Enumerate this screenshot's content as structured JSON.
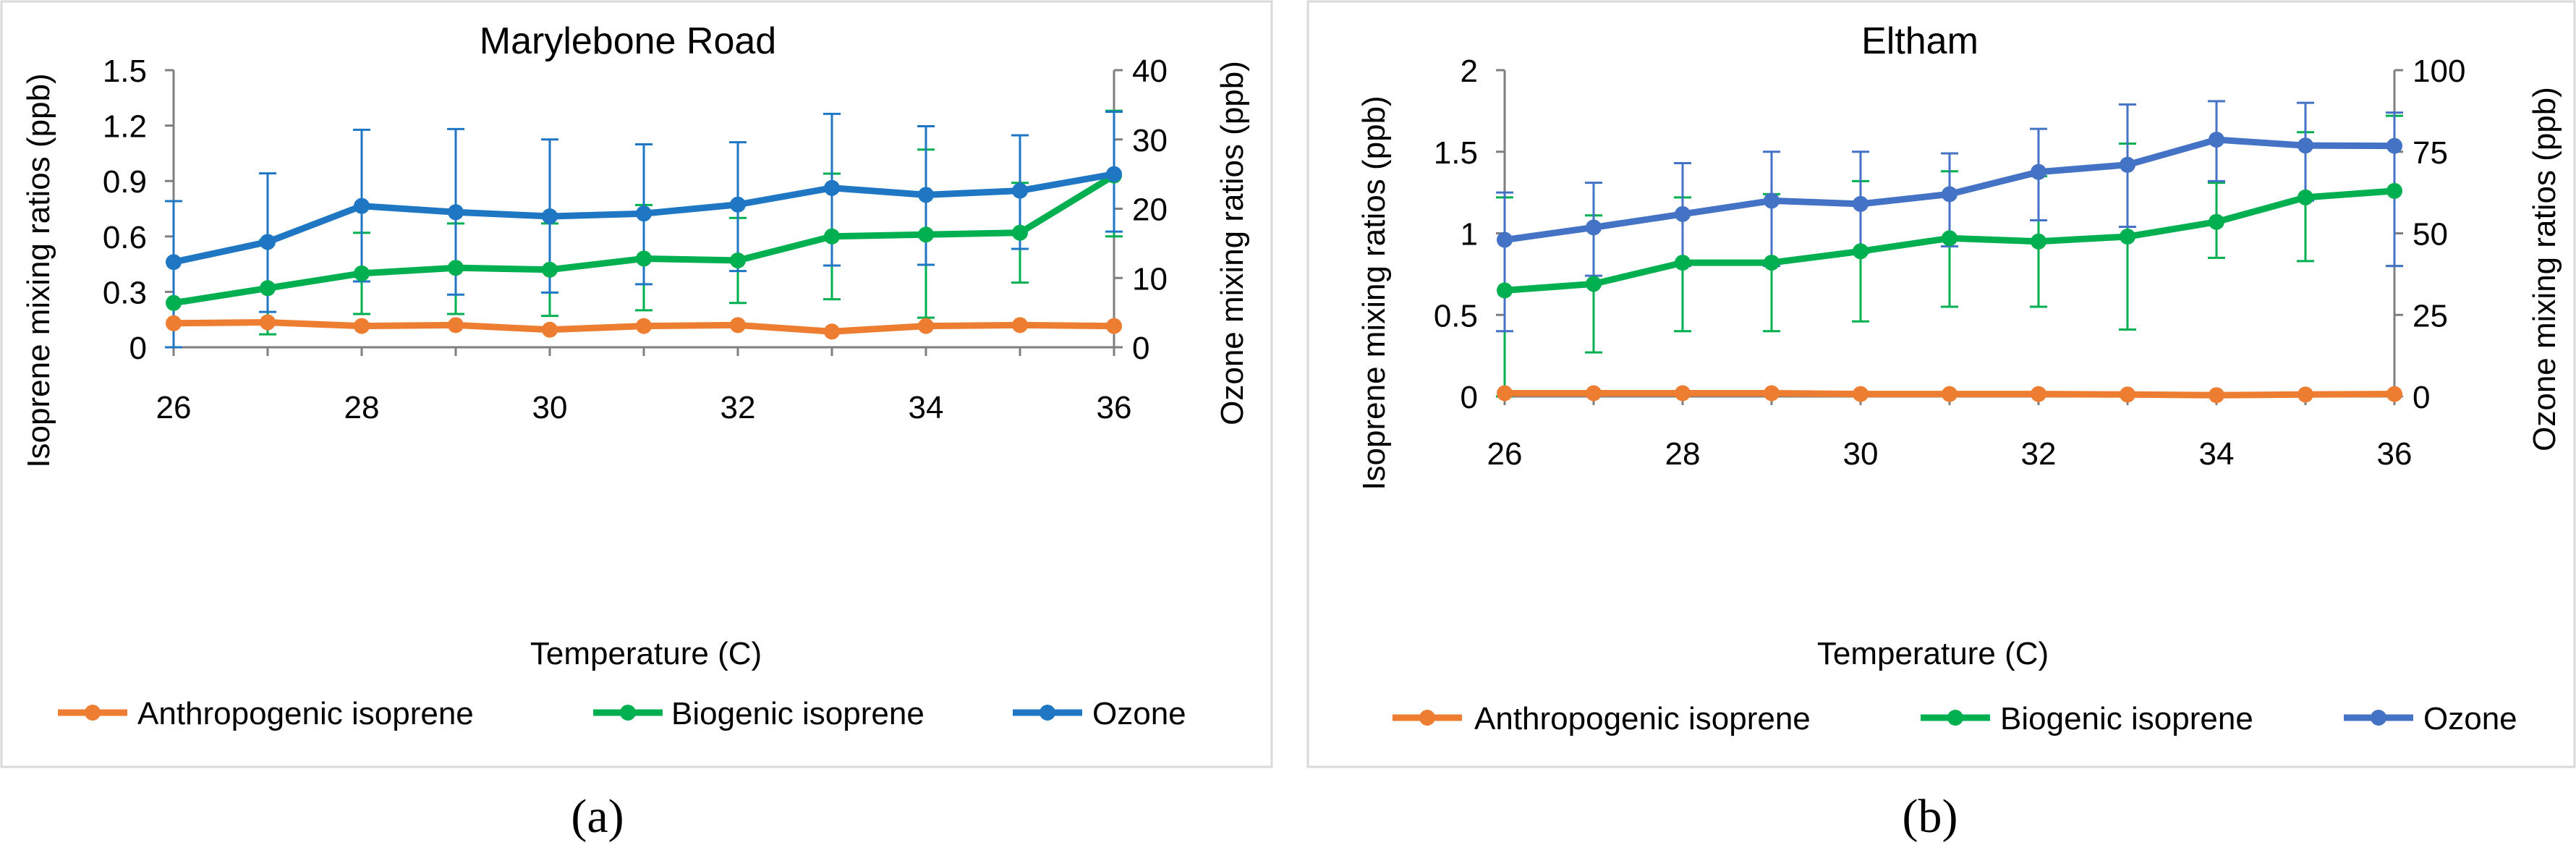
{
  "chart_data": [
    {
      "type": "line",
      "panel": "(a)",
      "title": "Marylebone  Road",
      "xlabel": "Temperature (C)",
      "ylabel": "Isoprene mixing ratios (ppb)",
      "y2label": "Ozone mixing ratios (ppb)",
      "x": [
        26,
        27,
        28,
        29,
        30,
        31,
        32,
        33,
        34,
        35,
        36
      ],
      "xlim": [
        26,
        36
      ],
      "xticks": [
        "26",
        "28",
        "30",
        "32",
        "34",
        "36"
      ],
      "ylim": [
        0,
        1.5
      ],
      "yticks": [
        "0",
        "0.3",
        "0.6",
        "0.9",
        "1.2",
        "1.5"
      ],
      "y2lim": [
        0,
        40
      ],
      "y2ticks": [
        "0",
        "10",
        "20",
        "30",
        "40"
      ],
      "grid": false,
      "legend_position": "bottom",
      "series": [
        {
          "name": "Anthropogenic isoprene",
          "axis": "left",
          "color": "#ED7D31",
          "values": [
            0.13,
            0.135,
            0.115,
            0.12,
            0.095,
            0.115,
            0.12,
            0.085,
            0.115,
            0.12,
            0.115
          ],
          "err_low": [
            0.13,
            0.135,
            0.115,
            0.12,
            0.095,
            0.115,
            0.12,
            0.085,
            0.115,
            0.12,
            0.115
          ],
          "err_high": [
            0.13,
            0.135,
            0.115,
            0.12,
            0.095,
            0.115,
            0.12,
            0.085,
            0.115,
            0.12,
            0.115
          ]
        },
        {
          "name": "Biogenic isoprene",
          "axis": "left",
          "color": "#00B050",
          "values": [
            0.24,
            0.32,
            0.4,
            0.43,
            0.42,
            0.48,
            0.47,
            0.6,
            0.61,
            0.62,
            0.93
          ],
          "err_low": [
            0.0,
            0.07,
            0.18,
            0.18,
            0.17,
            0.2,
            0.24,
            0.26,
            0.16,
            0.35,
            0.6
          ],
          "err_high": [
            0.0,
            0.58,
            0.62,
            0.67,
            0.67,
            0.77,
            0.7,
            0.94,
            1.07,
            0.89,
            1.28
          ]
        },
        {
          "name": "Ozone",
          "axis": "right",
          "color": "#1F77C4",
          "values": [
            12.3,
            15.2,
            20.4,
            19.5,
            18.9,
            19.3,
            20.6,
            23.0,
            22.0,
            22.6,
            25.0
          ],
          "err_low": [
            0.0,
            5.1,
            9.5,
            7.6,
            7.9,
            9.1,
            11.0,
            11.8,
            11.9,
            14.2,
            16.7
          ],
          "err_high": [
            21.1,
            25.1,
            31.4,
            31.5,
            30.0,
            29.3,
            29.6,
            33.7,
            31.9,
            30.6,
            34.0
          ]
        }
      ]
    },
    {
      "type": "line",
      "panel": "(b)",
      "title": "Eltham",
      "xlabel": "Temperature (C)",
      "ylabel": "Isoprene mixing ratios (ppb)",
      "y2label": "Ozone mixing ratios (ppb)",
      "x": [
        26,
        27,
        28,
        29,
        30,
        31,
        32,
        33,
        34,
        35,
        36
      ],
      "xlim": [
        26,
        36
      ],
      "xticks": [
        "26",
        "28",
        "30",
        "32",
        "34",
        "36"
      ],
      "ylim": [
        0,
        2
      ],
      "yticks": [
        "0",
        "0.5",
        "1",
        "1.5",
        "2"
      ],
      "y2lim": [
        0,
        100
      ],
      "y2ticks": [
        "0",
        "25",
        "50",
        "75",
        "100"
      ],
      "grid": false,
      "legend_position": "bottom",
      "series": [
        {
          "name": "Anthropogenic isoprene",
          "axis": "left",
          "color": "#ED7D31",
          "values": [
            0.02,
            0.02,
            0.02,
            0.02,
            0.015,
            0.015,
            0.015,
            0.012,
            0.008,
            0.012,
            0.015
          ],
          "err_low": [
            0.02,
            0.02,
            0.02,
            0.02,
            0.015,
            0.015,
            0.015,
            0.012,
            0.008,
            0.012,
            0.015
          ],
          "err_high": [
            0.02,
            0.02,
            0.02,
            0.02,
            0.015,
            0.015,
            0.015,
            0.012,
            0.008,
            0.012,
            0.015
          ]
        },
        {
          "name": "Biogenic isoprene",
          "axis": "left",
          "color": "#00B050",
          "values": [
            0.65,
            0.69,
            0.82,
            0.82,
            0.89,
            0.97,
            0.95,
            0.98,
            1.07,
            1.22,
            1.26
          ],
          "err_low": [
            0.0,
            0.27,
            0.4,
            0.4,
            0.46,
            0.55,
            0.55,
            0.41,
            0.85,
            0.83,
            0.8
          ],
          "err_high": [
            1.22,
            1.11,
            1.22,
            1.24,
            1.32,
            1.38,
            1.35,
            1.55,
            1.31,
            1.62,
            1.72
          ]
        },
        {
          "name": "Ozone",
          "axis": "right",
          "color": "#4472C4",
          "values": [
            48.0,
            51.8,
            55.9,
            60.0,
            59.0,
            62.0,
            68.8,
            71.0,
            78.7,
            76.9,
            76.8
          ],
          "err_low": [
            20.0,
            37.0,
            40.0,
            40.0,
            44.0,
            46.0,
            54.0,
            52.0,
            66.0,
            60.0,
            40.0
          ],
          "err_high": [
            62.5,
            65.5,
            71.5,
            75.0,
            75.0,
            74.5,
            82.0,
            89.5,
            90.5,
            90.0,
            87.0
          ]
        }
      ]
    }
  ]
}
